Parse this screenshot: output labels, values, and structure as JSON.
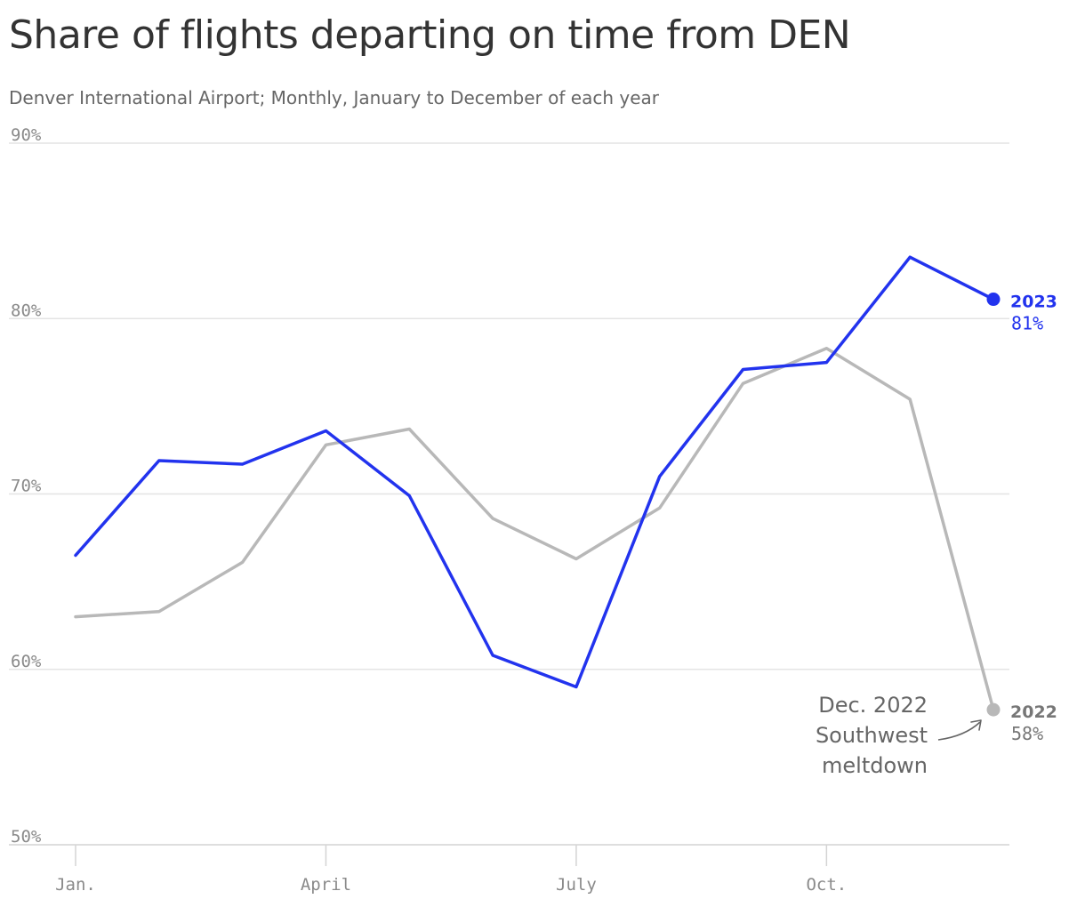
{
  "title": "Share of flights departing on time from DEN",
  "subtitle": "Denver International Airport; Monthly, January to December of each year",
  "chart_data": {
    "type": "line",
    "x": [
      1,
      2,
      3,
      4,
      5,
      6,
      7,
      8,
      9,
      10,
      11,
      12
    ],
    "x_tick_values": [
      1,
      4,
      7,
      10
    ],
    "x_tick_labels": [
      "Jan.",
      "April",
      "July",
      "Oct."
    ],
    "y_tick_values": [
      50,
      60,
      70,
      80,
      90
    ],
    "y_tick_labels": [
      "50%",
      "60%",
      "70%",
      "80%",
      "90%"
    ],
    "ylim": [
      50,
      90
    ],
    "grid": true,
    "legend": "end-of-line labels",
    "series": [
      {
        "name": "2022",
        "color": "#b8b8b8",
        "label_color": "#777777",
        "values": [
          63.0,
          63.3,
          66.1,
          72.8,
          73.7,
          68.6,
          66.3,
          69.2,
          76.3,
          78.3,
          75.4,
          57.7
        ],
        "end_label": "2022",
        "end_value_label": "58%"
      },
      {
        "name": "2023",
        "color": "#2233ee",
        "label_color": "#2233ee",
        "values": [
          66.5,
          71.9,
          71.7,
          73.6,
          69.9,
          60.8,
          59.0,
          71.0,
          77.1,
          77.5,
          83.5,
          81.1
        ],
        "end_label": "2023",
        "end_value_label": "81%"
      }
    ],
    "annotation": {
      "lines": [
        "Dec. 2022",
        "Southwest",
        "meltdown"
      ],
      "series": "2022"
    }
  }
}
